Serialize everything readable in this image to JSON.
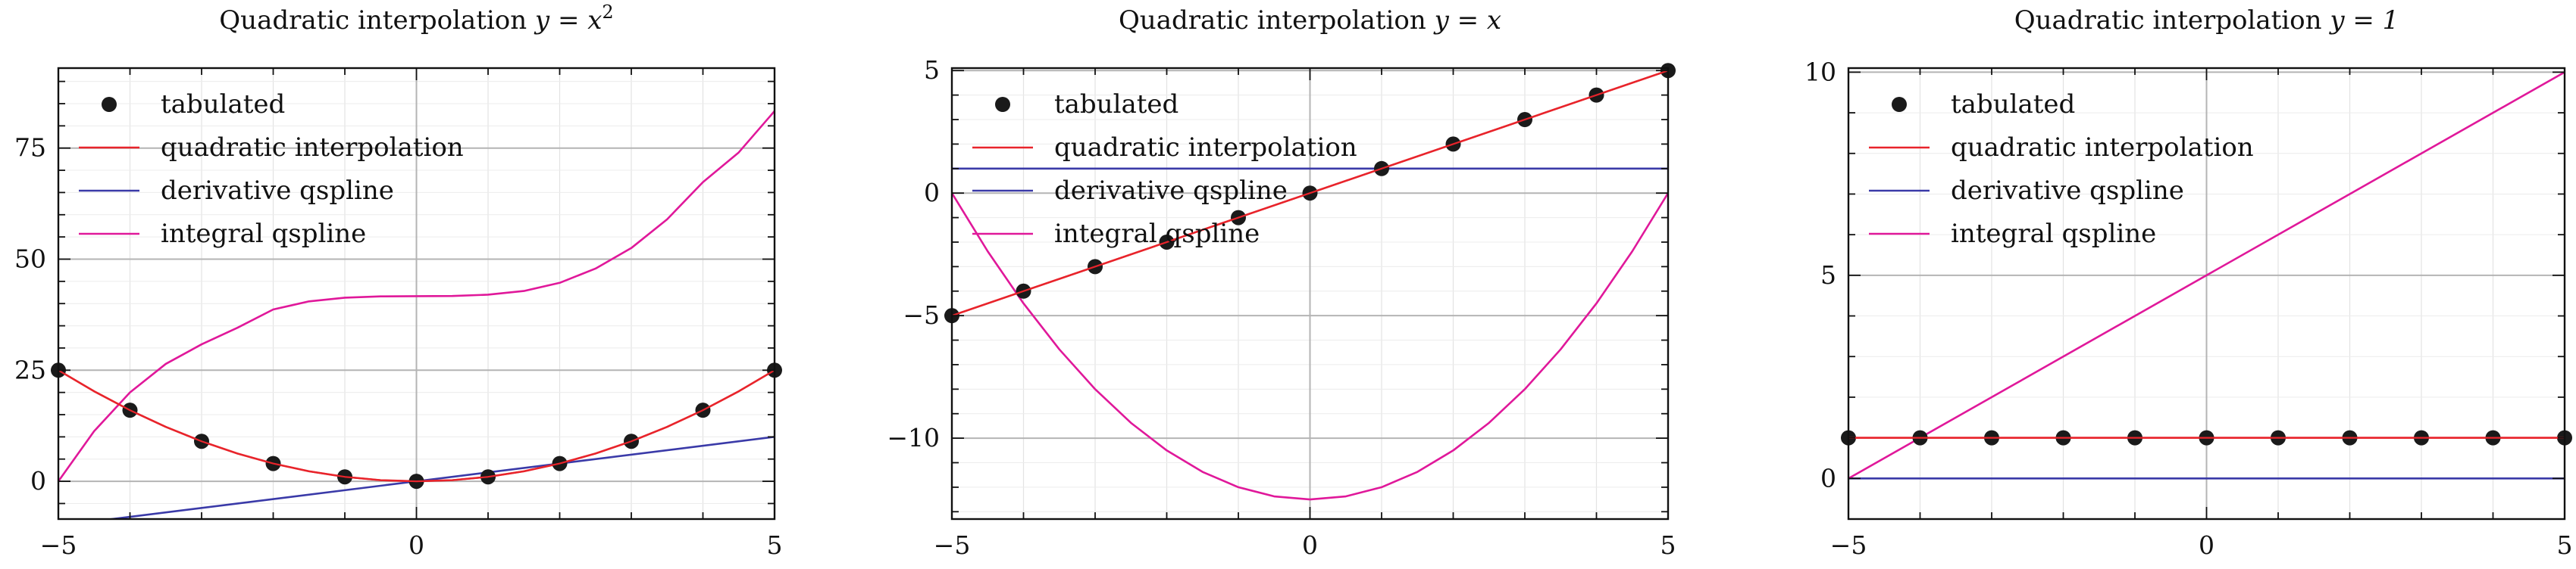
{
  "chart_data": [
    {
      "type": "line",
      "title": "Quadratic interpolation y = x²",
      "title_parts": {
        "prefix": "Quadratic interpolation ",
        "math": "y = x",
        "sup": "2"
      },
      "xlabel": "",
      "ylabel": "",
      "xlim": [
        -5,
        5
      ],
      "ylim": [
        -8.5,
        93
      ],
      "x_ticks": [
        -5,
        0,
        5
      ],
      "x_tick_labels": [
        "−5",
        "0",
        "5"
      ],
      "y_ticks": [
        0,
        25,
        50,
        75
      ],
      "y_tick_labels": [
        "0",
        "25",
        "50",
        "75"
      ],
      "grid": true,
      "legend_placement": "top-left",
      "series": [
        {
          "name": "tabulated",
          "kind": "points",
          "color": "#1a1a1a",
          "x": [
            -5,
            -4,
            -3,
            -2,
            -1,
            0,
            1,
            2,
            3,
            4,
            5
          ],
          "y": [
            25,
            16,
            9,
            4,
            1,
            0,
            1,
            4,
            9,
            16,
            25
          ]
        },
        {
          "name": "quadratic interpolation",
          "kind": "line",
          "color": "#e8242b",
          "x": [
            -5,
            -4.5,
            -4,
            -3.5,
            -3,
            -2.5,
            -2,
            -1.5,
            -1,
            -0.5,
            0,
            0.5,
            1,
            1.5,
            2,
            2.5,
            3,
            3.5,
            4,
            4.5,
            5
          ],
          "y": [
            25,
            20.25,
            16,
            12.25,
            9,
            6.25,
            4,
            2.25,
            1,
            0.25,
            0,
            0.25,
            1,
            2.25,
            4,
            6.25,
            9,
            12.25,
            16,
            20.25,
            25
          ]
        },
        {
          "name": "derivative qspline",
          "kind": "line",
          "color": "#3a3aa8",
          "x": [
            -5,
            5
          ],
          "y": [
            -10,
            10
          ]
        },
        {
          "name": "integral qspline",
          "kind": "line",
          "color": "#e0189a",
          "x": [
            -5,
            -4.5,
            -4,
            -3.5,
            -3,
            -2.5,
            -2,
            -1.5,
            -1,
            -0.5,
            0,
            0.5,
            1,
            1.5,
            2,
            2.5,
            3,
            3.5,
            4,
            4.5,
            5
          ],
          "y": [
            0,
            11.29,
            20.0,
            26.42,
            30.83,
            34.55,
            38.67,
            40.5,
            41.33,
            41.62,
            41.67,
            41.71,
            42.0,
            42.83,
            44.67,
            47.88,
            52.5,
            58.96,
            67.33,
            74.02,
            83.33
          ]
        }
      ]
    },
    {
      "type": "line",
      "title": "Quadratic interpolation y = x",
      "title_parts": {
        "prefix": "Quadratic interpolation ",
        "math": "y = x",
        "sup": ""
      },
      "xlabel": "",
      "ylabel": "",
      "xlim": [
        -5,
        5
      ],
      "ylim": [
        -13.3,
        5.1
      ],
      "x_ticks": [
        -5,
        0,
        5
      ],
      "x_tick_labels": [
        "−5",
        "0",
        "5"
      ],
      "y_ticks": [
        -10,
        -5,
        0,
        5
      ],
      "y_tick_labels": [
        "−10",
        "−5",
        "0",
        "5"
      ],
      "grid": true,
      "legend_placement": "top-left",
      "series": [
        {
          "name": "tabulated",
          "kind": "points",
          "color": "#1a1a1a",
          "x": [
            -5,
            -4,
            -3,
            -2,
            -1,
            0,
            1,
            2,
            3,
            4,
            5
          ],
          "y": [
            -5,
            -4,
            -3,
            -2,
            -1,
            0,
            1,
            2,
            3,
            4,
            5
          ]
        },
        {
          "name": "quadratic interpolation",
          "kind": "line",
          "color": "#e8242b",
          "x": [
            -5,
            5
          ],
          "y": [
            -5,
            5
          ]
        },
        {
          "name": "derivative qspline",
          "kind": "line",
          "color": "#3a3aa8",
          "x": [
            -5,
            5
          ],
          "y": [
            1,
            1
          ]
        },
        {
          "name": "integral qspline",
          "kind": "line",
          "color": "#e0189a",
          "x": [
            -5,
            -4.5,
            -4,
            -3.5,
            -3,
            -2.5,
            -2,
            -1.5,
            -1,
            -0.5,
            0,
            0.5,
            1,
            1.5,
            2,
            2.5,
            3,
            3.5,
            4,
            4.5,
            5
          ],
          "y": [
            0,
            -2.375,
            -4.5,
            -6.375,
            -8,
            -9.375,
            -10.5,
            -11.375,
            -12,
            -12.375,
            -12.5,
            -12.375,
            -12,
            -11.375,
            -10.5,
            -9.375,
            -8,
            -6.375,
            -4.5,
            -2.375,
            0
          ]
        }
      ]
    },
    {
      "type": "line",
      "title": "Quadratic interpolation y = 1",
      "title_parts": {
        "prefix": "Quadratic interpolation ",
        "math": "y = 1",
        "sup": ""
      },
      "xlabel": "",
      "ylabel": "",
      "xlim": [
        -5,
        5
      ],
      "ylim": [
        -1.0,
        10.1
      ],
      "x_ticks": [
        -5,
        0,
        5
      ],
      "x_tick_labels": [
        "−5",
        "0",
        "5"
      ],
      "y_ticks": [
        0,
        5,
        10
      ],
      "y_tick_labels": [
        "0",
        "5",
        "10"
      ],
      "grid": true,
      "legend_placement": "top-left",
      "series": [
        {
          "name": "tabulated",
          "kind": "points",
          "color": "#1a1a1a",
          "x": [
            -5,
            -4,
            -3,
            -2,
            -1,
            0,
            1,
            2,
            3,
            4,
            5
          ],
          "y": [
            1,
            1,
            1,
            1,
            1,
            1,
            1,
            1,
            1,
            1,
            1
          ]
        },
        {
          "name": "quadratic interpolation",
          "kind": "line",
          "color": "#e8242b",
          "x": [
            -5,
            5
          ],
          "y": [
            1,
            1
          ]
        },
        {
          "name": "derivative qspline",
          "kind": "line",
          "color": "#3a3aa8",
          "x": [
            -5,
            5
          ],
          "y": [
            0,
            0
          ]
        },
        {
          "name": "integral qspline",
          "kind": "line",
          "color": "#e0189a",
          "x": [
            -5,
            5
          ],
          "y": [
            0,
            10
          ]
        }
      ]
    }
  ]
}
